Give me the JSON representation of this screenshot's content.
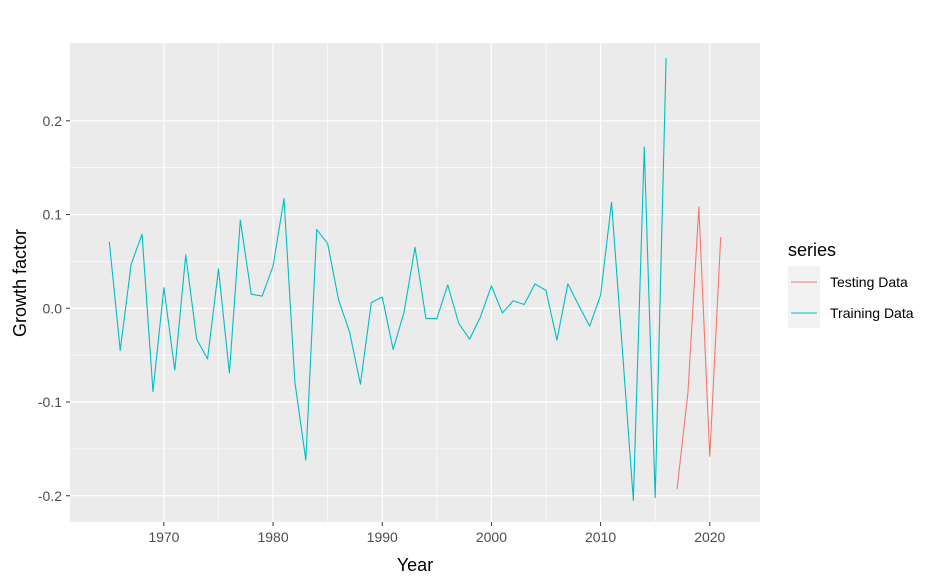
{
  "chart_data": {
    "type": "line",
    "title": "",
    "xlabel": "Year",
    "ylabel": "Growth factor",
    "xlim": [
      1961.4,
      2024.6
    ],
    "ylim": [
      -0.228,
      0.283
    ],
    "xticks": [
      1970,
      1980,
      1990,
      2000,
      2010,
      2020
    ],
    "xtick_labels": [
      "1970",
      "1980",
      "1990",
      "2000",
      "2010",
      "2020"
    ],
    "yticks": [
      -0.2,
      -0.1,
      0.0,
      0.1,
      0.2
    ],
    "ytick_labels": [
      "-0.2",
      "-0.1",
      "0.0",
      "0.1",
      "0.2"
    ],
    "grid": true,
    "legend": {
      "title": "series",
      "placement": "right"
    },
    "series": [
      {
        "name": "Testing Data",
        "color": "#F8766D",
        "x": [
          2017,
          2018,
          2019,
          2020,
          2021
        ],
        "y": [
          -0.193,
          -0.09,
          0.108,
          -0.158,
          0.076
        ]
      },
      {
        "name": "Training Data",
        "color": "#00BFC4",
        "x": [
          1965,
          1966,
          1967,
          1968,
          1969,
          1970,
          1971,
          1972,
          1973,
          1974,
          1975,
          1976,
          1977,
          1978,
          1979,
          1980,
          1981,
          1982,
          1983,
          1984,
          1985,
          1986,
          1987,
          1988,
          1989,
          1990,
          1991,
          1992,
          1993,
          1994,
          1995,
          1996,
          1997,
          1998,
          1999,
          2000,
          2001,
          2002,
          2003,
          2004,
          2005,
          2006,
          2007,
          2008,
          2009,
          2010,
          2011,
          2012,
          2013,
          2014,
          2015,
          2016
        ],
        "y": [
          0.071,
          -0.045,
          0.047,
          0.079,
          -0.089,
          0.022,
          -0.066,
          0.057,
          -0.033,
          -0.054,
          0.042,
          -0.069,
          0.094,
          0.015,
          0.013,
          0.045,
          0.117,
          -0.079,
          -0.162,
          0.084,
          0.069,
          0.009,
          -0.025,
          -0.081,
          0.006,
          0.012,
          -0.044,
          -0.004,
          0.065,
          -0.011,
          -0.011,
          0.025,
          -0.016,
          -0.033,
          -0.009,
          0.024,
          -0.005,
          0.008,
          0.004,
          0.026,
          0.019,
          -0.034,
          0.026,
          0.003,
          -0.019,
          0.014,
          0.113,
          -0.045,
          -0.205,
          0.172,
          -0.202,
          0.267
        ]
      }
    ]
  }
}
